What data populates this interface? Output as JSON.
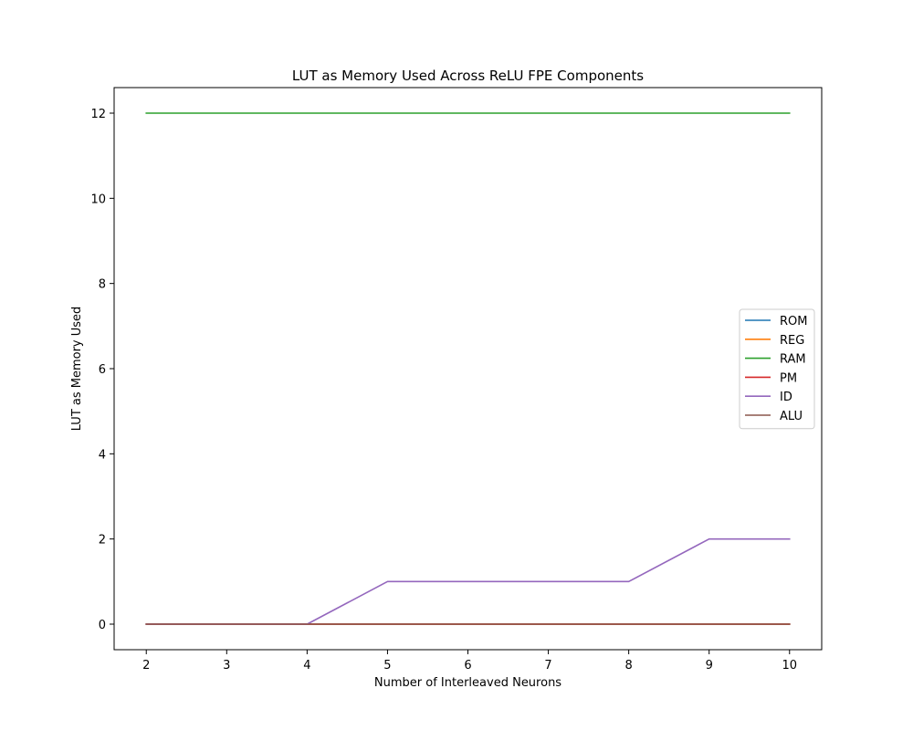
{
  "chart_data": {
    "type": "line",
    "title": "LUT as Memory Used Across ReLU FPE Components",
    "xlabel": "Number of Interleaved Neurons",
    "ylabel": "LUT as Memory Used",
    "x": [
      2,
      3,
      4,
      5,
      6,
      7,
      8,
      9,
      10
    ],
    "xticks": [
      "2",
      "3",
      "4",
      "5",
      "6",
      "7",
      "8",
      "9",
      "10"
    ],
    "yticks": [
      "0",
      "2",
      "4",
      "6",
      "8",
      "10",
      "12"
    ],
    "xlim": [
      1.6,
      10.4
    ],
    "ylim": [
      -0.6,
      12.6
    ],
    "grid": false,
    "legend_position": "center-right",
    "series": [
      {
        "name": "ROM",
        "color": "#1f77b4",
        "values": [
          0,
          0,
          0,
          0,
          0,
          0,
          0,
          0,
          0
        ]
      },
      {
        "name": "REG",
        "color": "#ff7f0e",
        "values": [
          0,
          0,
          0,
          0,
          0,
          0,
          0,
          0,
          0
        ]
      },
      {
        "name": "RAM",
        "color": "#2ca02c",
        "values": [
          12,
          12,
          12,
          12,
          12,
          12,
          12,
          12,
          12
        ]
      },
      {
        "name": "PM",
        "color": "#d62728",
        "values": [
          0,
          0,
          0,
          0,
          0,
          0,
          0,
          0,
          0
        ]
      },
      {
        "name": "ID",
        "color": "#9467bd",
        "values": [
          0,
          0,
          0,
          1,
          1,
          1,
          1,
          2,
          2
        ]
      },
      {
        "name": "ALU",
        "color": "#8c564b",
        "values": [
          0,
          0,
          0,
          0,
          0,
          0,
          0,
          0,
          0
        ]
      }
    ]
  }
}
